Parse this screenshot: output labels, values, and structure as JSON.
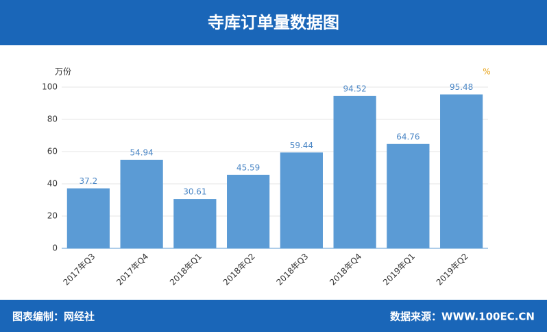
{
  "chart_data": {
    "type": "bar",
    "title": "寺库订单量数据图",
    "ylabel": "万份",
    "y2label": "%",
    "categories": [
      "2017年Q3",
      "2017年Q4",
      "2018年Q1",
      "2018年Q2",
      "2018年Q3",
      "2018年Q4",
      "2019年Q1",
      "2019年Q2"
    ],
    "values": [
      37.2,
      54.94,
      30.61,
      45.59,
      59.44,
      94.52,
      64.76,
      95.48
    ],
    "color": "#5b9bd5",
    "ylim": [
      0,
      100
    ],
    "yticks": [
      0,
      20,
      40,
      60,
      80,
      100
    ],
    "grid": true
  },
  "footer": {
    "left": "图表编制：网经社",
    "right": "数据来源：WWW.100EC.CN"
  }
}
